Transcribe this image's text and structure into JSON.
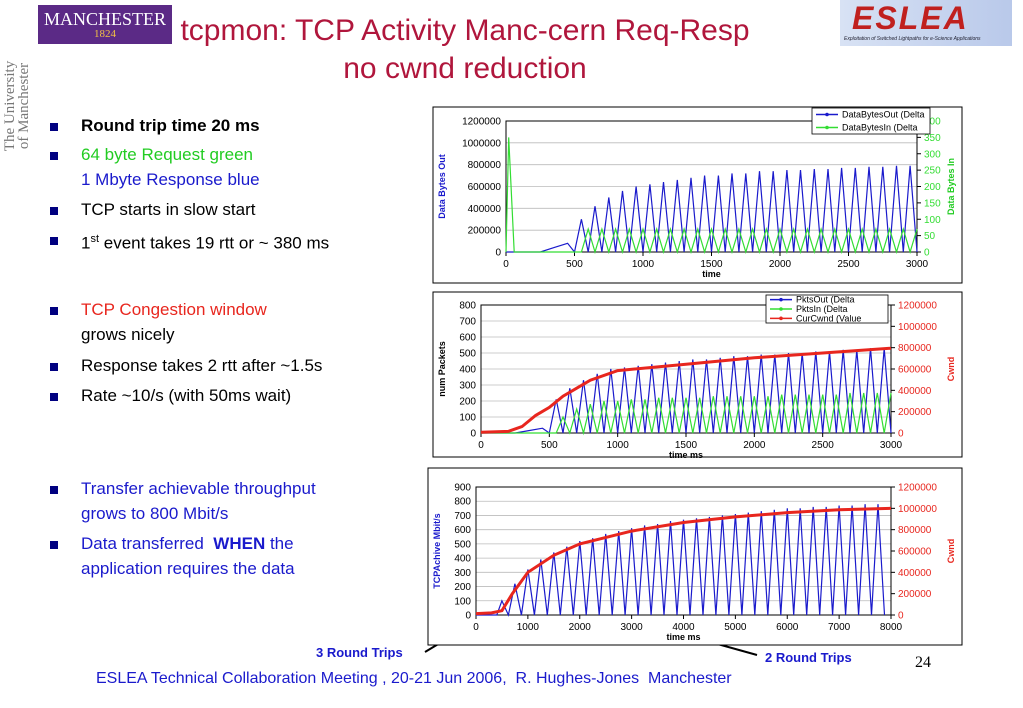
{
  "header": {
    "logo_name": "MANCHESTER",
    "logo_year": "1824",
    "university": [
      "The University",
      "of Manchester"
    ],
    "title": [
      "tcpmon: TCP Activity Manc-cern Req-Resp",
      "no cwnd reduction"
    ],
    "eslea": "ESLEA",
    "eslea_tagline": "Exploitation of Switched Lightpaths for e-Science Applications"
  },
  "bullets": [
    [
      "Round trip time 20 ms"
    ],
    [
      "64 byte Request green",
      "1 Mbyte Response blue"
    ],
    [
      "TCP starts in slow start"
    ],
    [
      "1",
      "st",
      " event takes 19 rtt or ~ 380 ms"
    ],
    [
      "TCP Congestion window",
      "grows nicely"
    ],
    [
      "Response takes 2 rtt after ~1.5s"
    ],
    [
      "Rate ~10/s (with 50ms wait)"
    ],
    [
      "Transfer achievable throughput",
      "grows to 800 Mbit/s"
    ],
    [
      "Data transferred  ",
      "WHEN",
      " the",
      "application requires the data"
    ]
  ],
  "annotations": [
    "3 Round Trips",
    "2 Round Trips"
  ],
  "footer": "ESLEA Technical Collaboration Meeting , 20-21 Jun 2006,  R. Hughes-Jones  Manchester",
  "page_number": "24",
  "chart_data": [
    {
      "type": "line",
      "xlabel": "time",
      "ylabel": "Data Bytes Out",
      "y2label": "Data Bytes In",
      "ylabel_color": "#1a1acc",
      "y2label_color": "#22cc22",
      "xlim": [
        0,
        3000
      ],
      "xticks": [
        0,
        500,
        1000,
        1500,
        2000,
        2500,
        3000
      ],
      "ylim": [
        0,
        1200000
      ],
      "yticks": [
        0,
        200000,
        400000,
        600000,
        800000,
        1000000,
        1200000
      ],
      "y2lim": [
        0,
        400
      ],
      "y2ticks": [
        0,
        50,
        100,
        150,
        200,
        250,
        300,
        350,
        400
      ],
      "grid": true,
      "legend": "upper right",
      "series": [
        {
          "name": "DataBytesOut (Delta",
          "color": "#1a1acc",
          "x": [
            0,
            250,
            350,
            450,
            500,
            550,
            600,
            650,
            700,
            750,
            800,
            850,
            900,
            950,
            1000,
            1050,
            1100,
            1150,
            1200,
            1250,
            1300,
            1350,
            1400,
            1450,
            1500,
            1550,
            1600,
            1650,
            1700,
            1750,
            1800,
            1850,
            1900,
            1950,
            2000,
            2050,
            2100,
            2150,
            2200,
            2250,
            2300,
            2350,
            2400,
            2450,
            2500,
            2550,
            2600,
            2650,
            2700,
            2750,
            2800,
            2850,
            2900,
            2950,
            3000
          ],
          "values": [
            0,
            0,
            40000,
            80000,
            0,
            300000,
            0,
            420000,
            0,
            500000,
            0,
            560000,
            0,
            600000,
            0,
            620000,
            0,
            640000,
            0,
            660000,
            0,
            680000,
            0,
            700000,
            0,
            700000,
            0,
            720000,
            0,
            720000,
            0,
            740000,
            0,
            740000,
            0,
            750000,
            0,
            750000,
            0,
            760000,
            0,
            760000,
            0,
            770000,
            0,
            770000,
            0,
            780000,
            0,
            780000,
            0,
            790000,
            0,
            790000,
            0
          ]
        },
        {
          "name": "DataBytesIn (Delta",
          "color": "#33dd33",
          "axis": "y2",
          "x": [
            0,
            20,
            60,
            550,
            600,
            650,
            700,
            750,
            800,
            850,
            900,
            950,
            1000,
            1050,
            1100,
            1150,
            1200,
            1250,
            1300,
            1350,
            1400,
            1450,
            1500,
            1550,
            1600,
            1650,
            1700,
            1750,
            1800,
            1850,
            1900,
            1950,
            2000,
            2050,
            2100,
            2150,
            2200,
            2250,
            2300,
            2350,
            2400,
            2450,
            2500,
            2550,
            2600,
            2650,
            2700,
            2750,
            2800,
            2850,
            2900,
            2950,
            3000
          ],
          "values": [
            0,
            350,
            0,
            0,
            70,
            0,
            70,
            0,
            70,
            0,
            70,
            0,
            70,
            0,
            70,
            0,
            70,
            0,
            70,
            0,
            70,
            0,
            70,
            0,
            70,
            0,
            70,
            0,
            70,
            0,
            70,
            0,
            70,
            0,
            70,
            0,
            70,
            0,
            70,
            0,
            70,
            0,
            70,
            0,
            70,
            0,
            70,
            0,
            70,
            0,
            70,
            0,
            70
          ]
        }
      ]
    },
    {
      "type": "line",
      "xlabel": "time ms",
      "ylabel": "num Packets",
      "y2label": "Cwnd",
      "ylabel_color": "#000000",
      "y2label_color": "#e8261e",
      "xlim": [
        0,
        3000
      ],
      "xticks": [
        0,
        500,
        1000,
        1500,
        2000,
        2500,
        3000
      ],
      "ylim": [
        0,
        800
      ],
      "yticks": [
        0,
        100,
        200,
        300,
        400,
        500,
        600,
        700,
        800
      ],
      "y2lim": [
        0,
        1200000
      ],
      "y2ticks": [
        0,
        200000,
        400000,
        600000,
        800000,
        1000000,
        1200000
      ],
      "grid": true,
      "legend": "upper right",
      "series": [
        {
          "name": "PktsOut (Delta",
          "color": "#1a1acc",
          "x": [
            0,
            250,
            350,
            450,
            500,
            550,
            600,
            650,
            700,
            750,
            800,
            850,
            900,
            950,
            1000,
            1050,
            1100,
            1150,
            1200,
            1250,
            1300,
            1350,
            1400,
            1450,
            1500,
            1550,
            1600,
            1650,
            1700,
            1750,
            1800,
            1850,
            1900,
            1950,
            2000,
            2050,
            2100,
            2150,
            2200,
            2250,
            2300,
            2350,
            2400,
            2450,
            2500,
            2550,
            2600,
            2650,
            2700,
            2750,
            2800,
            2850,
            2900,
            2950,
            3000
          ],
          "values": [
            0,
            0,
            15,
            30,
            0,
            210,
            0,
            280,
            0,
            330,
            0,
            370,
            0,
            400,
            0,
            410,
            0,
            420,
            0,
            430,
            0,
            440,
            0,
            450,
            0,
            460,
            0,
            460,
            0,
            470,
            0,
            480,
            0,
            480,
            0,
            490,
            0,
            490,
            0,
            500,
            0,
            500,
            0,
            510,
            0,
            510,
            0,
            520,
            0,
            520,
            0,
            530,
            0,
            530,
            0
          ]
        },
        {
          "name": "PktsIn (Delta",
          "color": "#33dd33",
          "x": [
            0,
            550,
            600,
            650,
            700,
            750,
            800,
            850,
            900,
            950,
            1000,
            1050,
            1100,
            1150,
            1200,
            1250,
            1300,
            1350,
            1400,
            1450,
            1500,
            1550,
            1600,
            1650,
            1700,
            1750,
            1800,
            1850,
            1900,
            1950,
            2000,
            2050,
            2100,
            2150,
            2200,
            2250,
            2300,
            2350,
            2400,
            2450,
            2500,
            2550,
            2600,
            2650,
            2700,
            2750,
            2800,
            2850,
            2900,
            2950,
            3000
          ],
          "values": [
            0,
            0,
            100,
            0,
            150,
            0,
            180,
            0,
            200,
            0,
            200,
            0,
            210,
            0,
            210,
            0,
            220,
            0,
            220,
            0,
            220,
            0,
            220,
            0,
            230,
            0,
            230,
            0,
            230,
            0,
            230,
            0,
            230,
            0,
            240,
            0,
            240,
            0,
            240,
            0,
            240,
            0,
            240,
            0,
            250,
            0,
            250,
            0,
            250,
            0,
            250
          ]
        },
        {
          "name": "CurCwnd (Value",
          "color": "#e8261e",
          "axis": "y2",
          "width": 3,
          "x": [
            0,
            200,
            300,
            400,
            500,
            600,
            700,
            800,
            1000,
            1500,
            2000,
            2500,
            3000
          ],
          "values": [
            7000,
            15000,
            60000,
            165000,
            240000,
            345000,
            420000,
            495000,
            585000,
            645000,
            705000,
            750000,
            795000
          ]
        }
      ]
    },
    {
      "type": "line",
      "xlabel": "time ms",
      "ylabel": "TCPAchive Mbit/s",
      "y2label": "Cwnd",
      "ylabel_color": "#1a1acc",
      "y2label_color": "#e8261e",
      "xlim": [
        0,
        8000
      ],
      "xticks": [
        0,
        1000,
        2000,
        3000,
        4000,
        5000,
        6000,
        7000,
        8000
      ],
      "ylim": [
        0,
        900
      ],
      "yticks": [
        0,
        100,
        200,
        300,
        400,
        500,
        600,
        700,
        800,
        900
      ],
      "y2lim": [
        0,
        1200000
      ],
      "y2ticks": [
        0,
        200000,
        400000,
        600000,
        800000,
        1000000,
        1200000
      ],
      "grid": true,
      "series": [
        {
          "color": "#1a1acc",
          "x": [
            0,
            400,
            500,
            625,
            750,
            875,
            1000,
            1125,
            1250,
            1375,
            1500,
            1625,
            1750,
            1875,
            2000,
            2125,
            2250,
            2375,
            2500,
            2625,
            2750,
            2875,
            3000,
            3125,
            3250,
            3375,
            3500,
            3625,
            3750,
            3875,
            4000,
            4125,
            4250,
            4375,
            4500,
            4625,
            4750,
            4875,
            5000,
            5125,
            5250,
            5375,
            5500,
            5625,
            5750,
            5875,
            6000,
            6125,
            6250,
            6375,
            6500,
            6625,
            6750,
            6875,
            7000,
            7125,
            7250,
            7375,
            7500,
            7625,
            7750,
            7875
          ],
          "values": [
            0,
            0,
            100,
            0,
            220,
            0,
            320,
            0,
            390,
            0,
            440,
            0,
            480,
            0,
            520,
            0,
            540,
            0,
            570,
            0,
            590,
            0,
            610,
            0,
            630,
            0,
            640,
            0,
            660,
            0,
            670,
            0,
            680,
            0,
            690,
            0,
            700,
            0,
            710,
            0,
            720,
            0,
            730,
            0,
            740,
            0,
            750,
            0,
            750,
            0,
            760,
            0,
            760,
            0,
            770,
            0,
            770,
            0,
            780,
            0,
            780,
            0
          ]
        },
        {
          "color": "#e8261e",
          "axis": "y2",
          "width": 3,
          "x": [
            0,
            300,
            500,
            700,
            1000,
            1500,
            2000,
            3000,
            4000,
            5000,
            6000,
            7000,
            8000
          ],
          "values": [
            13000,
            20000,
            40000,
            200000,
            400000,
            560000,
            667000,
            787000,
            867000,
            920000,
            960000,
            987000,
            1000000
          ]
        }
      ]
    }
  ]
}
